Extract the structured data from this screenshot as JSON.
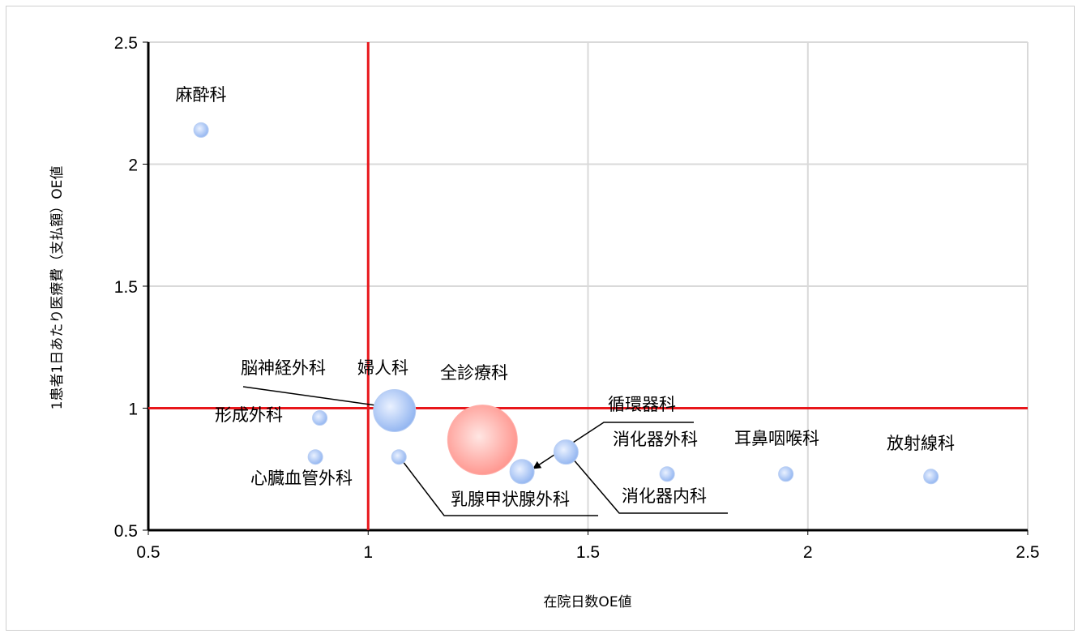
{
  "chart_data": {
    "type": "scatter",
    "xlabel": "在院日数OE値",
    "ylabel": "1患者1日あたり医療費（支払額）OE値",
    "xlim": [
      0.5,
      2.5
    ],
    "ylim": [
      0.5,
      2.5
    ],
    "x_ticks": [
      "0.5",
      "1",
      "1.5",
      "2",
      "2.5"
    ],
    "y_ticks": [
      "0.5",
      "1",
      "1.5",
      "2",
      "2.5"
    ],
    "grid": true,
    "reference_lines": {
      "x": 1,
      "y": 1,
      "color": "#e8161b"
    },
    "colors": {
      "department": "#a9c4f2",
      "overall": "#ff9a94"
    },
    "points": [
      {
        "label": "麻酔科",
        "x": 0.62,
        "y": 2.14,
        "size": "small"
      },
      {
        "label": "脳神経外科",
        "x": 1.06,
        "y": 0.99,
        "size": "large"
      },
      {
        "label": "婦人科",
        "x": 1.06,
        "y": 0.99,
        "size": "large"
      },
      {
        "label": "全診療科",
        "x": 1.26,
        "y": 0.87,
        "size": "xlarge",
        "overall": true
      },
      {
        "label": "形成外科",
        "x": 0.89,
        "y": 0.96,
        "size": "small"
      },
      {
        "label": "心臓血管外科",
        "x": 0.88,
        "y": 0.8,
        "size": "small"
      },
      {
        "label": "乳腺甲状腺外科",
        "x": 1.07,
        "y": 0.8,
        "size": "small"
      },
      {
        "label": "循環器科",
        "x": 1.35,
        "y": 0.74,
        "size": "medium"
      },
      {
        "label": "消化器外科",
        "x": 1.45,
        "y": 0.82,
        "size": "medium"
      },
      {
        "label": "消化器内科",
        "x": 1.45,
        "y": 0.82,
        "size": "medium"
      },
      {
        "label": "耳鼻咽喉科",
        "x": 1.68,
        "y": 0.73,
        "size": "small"
      },
      {
        "label": "放射線科",
        "x": 1.95,
        "y": 0.73,
        "size": "small"
      },
      {
        "label": "放射線科",
        "x": 2.28,
        "y": 0.72,
        "size": "small"
      }
    ]
  }
}
